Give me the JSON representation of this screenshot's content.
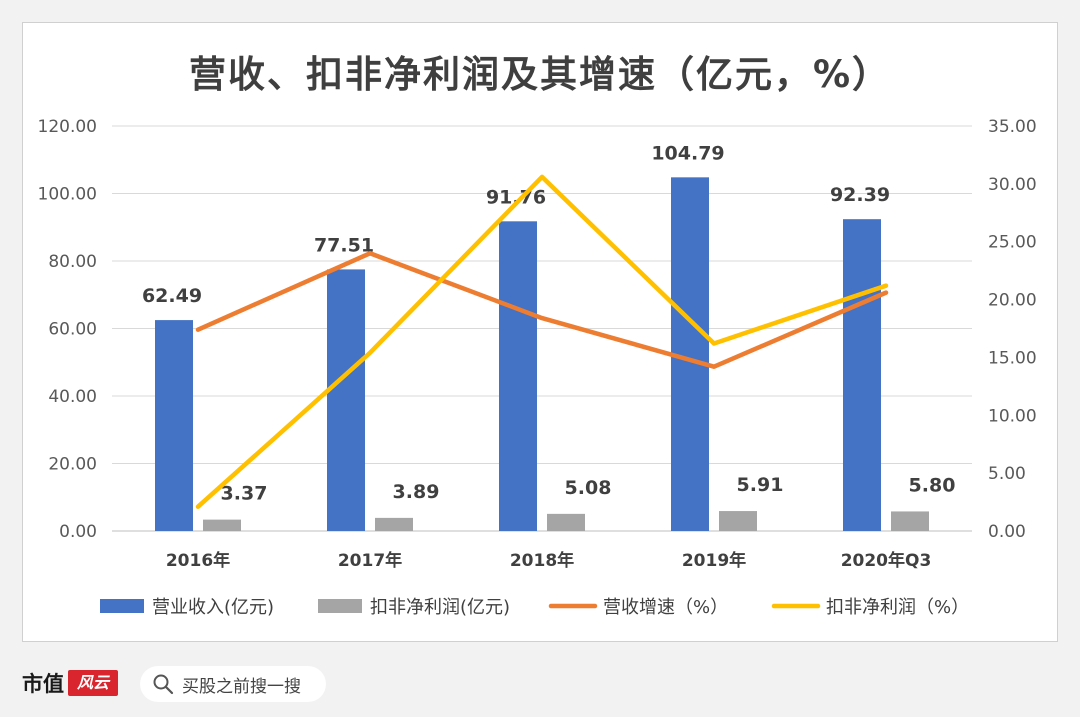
{
  "title": "营收、扣非净利润及其增速（亿元，%）",
  "chart_data": {
    "type": "bar+line",
    "title": "营收、扣非净利润及其增速（亿元，%）",
    "categories": [
      "2016年",
      "2017年",
      "2018年",
      "2019年",
      "2020年Q3"
    ],
    "y_left": {
      "min": 0,
      "max": 120,
      "ticks": [
        "0.00",
        "20.00",
        "40.00",
        "60.00",
        "80.00",
        "100.00",
        "120.00"
      ]
    },
    "y_right": {
      "min": 0,
      "max": 35,
      "ticks": [
        "0.00",
        "5.00",
        "10.00",
        "15.00",
        "20.00",
        "25.00",
        "30.00",
        "35.00"
      ]
    },
    "grid": true,
    "legend_position": "bottom",
    "series": [
      {
        "name": "营业收入(亿元)",
        "type": "bar",
        "axis": "left",
        "color": "#4472c4",
        "values": [
          62.49,
          77.51,
          91.76,
          104.79,
          92.39
        ],
        "labels": [
          "62.49",
          "77.51",
          "91.76",
          "104.79",
          "92.39"
        ]
      },
      {
        "name": "扣非净利润(亿元)",
        "type": "bar",
        "axis": "left",
        "color": "#a5a5a5",
        "values": [
          3.37,
          3.89,
          5.08,
          5.91,
          5.8
        ],
        "labels": [
          "3.37",
          "3.89",
          "5.08",
          "5.91",
          "5.80"
        ]
      },
      {
        "name": "营收增速（%）",
        "type": "line",
        "axis": "right",
        "color": "#ed7d31",
        "values": [
          17.4,
          24.0,
          18.4,
          14.2,
          20.6
        ]
      },
      {
        "name": "扣非净利润（%）",
        "type": "line",
        "axis": "right",
        "color": "#ffc000",
        "values": [
          2.1,
          15.4,
          30.6,
          16.2,
          21.2
        ]
      }
    ]
  },
  "footer": {
    "brand": "市值",
    "brand_mark": "风云",
    "search_placeholder": "买股之前搜一搜"
  }
}
